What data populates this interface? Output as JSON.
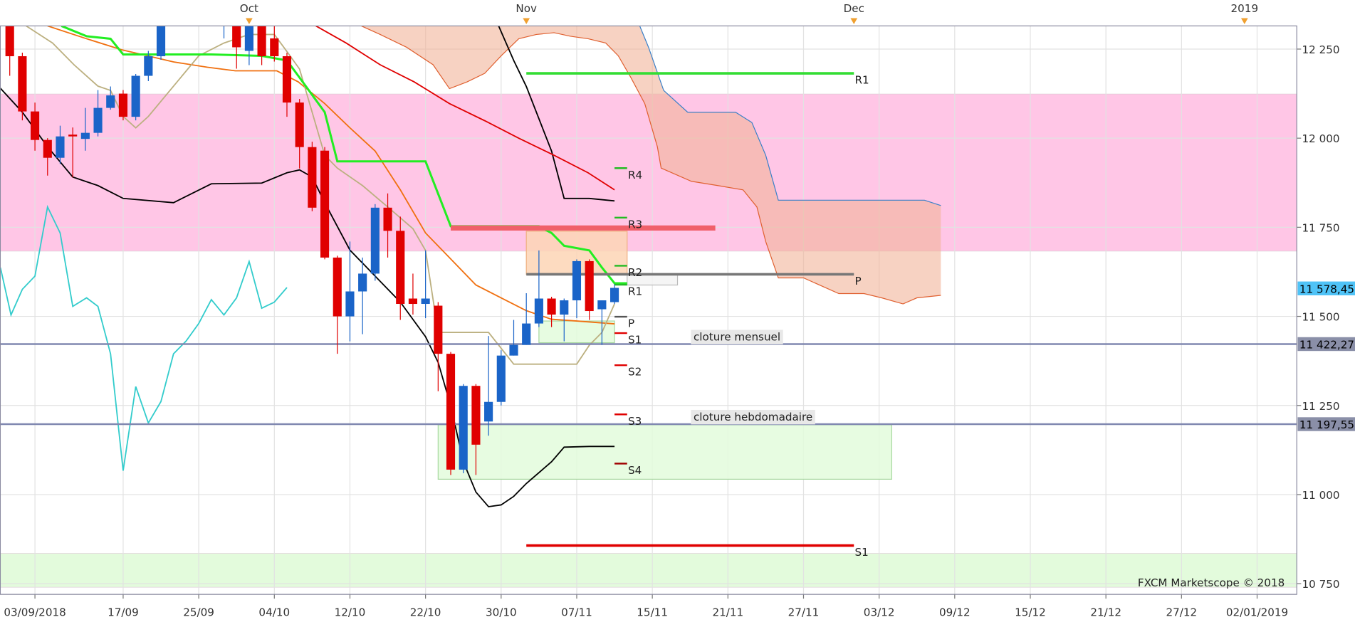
{
  "chart_data": {
    "type": "candlestick",
    "xlim": [
      -2.75,
      100.15
    ],
    "ylim": [
      10720,
      12315
    ],
    "grid": true,
    "xticks": [
      {
        "value": 0,
        "label": "03/09/2018"
      },
      {
        "value": 7,
        "label": "17/09"
      },
      {
        "value": 13,
        "label": "25/09"
      },
      {
        "value": 19,
        "label": "04/10"
      },
      {
        "value": 25,
        "label": "12/10"
      },
      {
        "value": 31,
        "label": "22/10"
      },
      {
        "value": 37,
        "label": "30/10"
      },
      {
        "value": 43,
        "label": "07/11"
      },
      {
        "value": 49,
        "label": "15/11"
      },
      {
        "value": 55,
        "label": "21/11"
      },
      {
        "value": 61,
        "label": "27/11"
      },
      {
        "value": 67,
        "label": "03/12"
      },
      {
        "value": 73,
        "label": "09/12"
      },
      {
        "value": 79,
        "label": "15/12"
      },
      {
        "value": 85,
        "label": "21/12"
      },
      {
        "value": 91,
        "label": "27/12"
      },
      {
        "value": 97,
        "label": "02/01/2019"
      }
    ],
    "top_ticks": [
      {
        "value": 17,
        "label": "Oct"
      },
      {
        "value": 39,
        "label": "Nov"
      },
      {
        "value": 65,
        "label": "Dec"
      },
      {
        "value": 96,
        "label": "2019"
      }
    ],
    "yticks": [
      {
        "value": 12250,
        "label": "12 250"
      },
      {
        "value": 12000,
        "label": "12 000"
      },
      {
        "value": 11750,
        "label": "11 750"
      },
      {
        "value": 11500,
        "label": "11 500"
      },
      {
        "value": 11250,
        "label": "11 250"
      },
      {
        "value": 11000,
        "label": "11 000"
      },
      {
        "value": 10750,
        "label": "10 750"
      }
    ],
    "candles": {
      "up_color": "#1a64c8",
      "down_color": "#e00000",
      "x": [
        -2,
        -1,
        0,
        1,
        2,
        3,
        4,
        5,
        6,
        7,
        8,
        9,
        10,
        15,
        16,
        17,
        18,
        19,
        20,
        21,
        22,
        23,
        24,
        25,
        26,
        27,
        28,
        29,
        30,
        31,
        32,
        33,
        34,
        35,
        36,
        37,
        38,
        39,
        40,
        41,
        42,
        43,
        44,
        45,
        46
      ],
      "open": [
        12330,
        12230,
        12075,
        11995,
        11945,
        12010,
        11998,
        12015,
        12085,
        12125,
        12060,
        12175,
        12230,
        12330,
        12330,
        12245,
        12330,
        12280,
        12230,
        12100,
        11975,
        11965,
        11665,
        11500,
        11570,
        11620,
        11805,
        11740,
        11550,
        11535,
        11530,
        11395,
        11070,
        11305,
        11205,
        11260,
        11390,
        11420,
        11480,
        11550,
        11505,
        11545,
        11655,
        11520,
        11540
      ],
      "high": [
        12340,
        12240,
        12100,
        12000,
        12035,
        12030,
        12085,
        12135,
        12145,
        12135,
        12180,
        12245,
        12330,
        12345,
        12340,
        12340,
        12340,
        12320,
        12240,
        12110,
        11990,
        11975,
        11670,
        11710,
        11665,
        11815,
        11845,
        11780,
        11620,
        11685,
        11540,
        11400,
        11310,
        11310,
        11445,
        11405,
        11490,
        11565,
        11685,
        11555,
        11550,
        11660,
        11660,
        11545,
        11590
      ],
      "low": [
        12175,
        12050,
        11965,
        11895,
        11928,
        11890,
        11965,
        12005,
        12080,
        12050,
        12050,
        12160,
        12220,
        12280,
        12195,
        12205,
        12205,
        12215,
        12060,
        11915,
        11795,
        11660,
        11395,
        11430,
        11450,
        11600,
        11665,
        11490,
        11505,
        11495,
        11290,
        11055,
        11060,
        11055,
        11165,
        11250,
        11390,
        11420,
        11470,
        11470,
        11430,
        11495,
        11490,
        11420,
        11535
      ],
      "close": [
        12230,
        12075,
        11995,
        11945,
        12005,
        12005,
        12015,
        12085,
        12120,
        12060,
        12175,
        12230,
        12320,
        12340,
        12255,
        12330,
        12230,
        12230,
        12100,
        11975,
        11805,
        11665,
        11500,
        11570,
        11620,
        11805,
        11740,
        11535,
        11535,
        11550,
        11395,
        11070,
        11305,
        11140,
        11260,
        11390,
        11420,
        11480,
        11550,
        11505,
        11545,
        11655,
        11515,
        11545,
        11580
      ]
    },
    "lines": [
      {
        "color": "#000000",
        "x": [
          -2.74,
          -1,
          1,
          3,
          5,
          7,
          11,
          14,
          18,
          20,
          21,
          22,
          23,
          25,
          27,
          29,
          31,
          32,
          33,
          34,
          35,
          36,
          37,
          38,
          39,
          41,
          42,
          44,
          46
        ],
        "values": [
          12140,
          12073,
          11976,
          11891,
          11867,
          11831,
          11819,
          11872,
          11874,
          11903,
          11911,
          11891,
          11819,
          11686,
          11613,
          11540,
          11443,
          11371,
          11249,
          11092,
          11007,
          10966,
          10971,
          10995,
          11031,
          11092,
          11133,
          11135,
          11135
        ]
      },
      {
        "color": "#000000",
        "x": [
          36.8,
          38,
          39,
          41,
          42,
          44,
          46
        ],
        "values": [
          12315,
          12218,
          12145,
          11964,
          11831,
          11831,
          11824
        ]
      },
      {
        "color": "#e00000",
        "x": [
          22.3,
          24.7,
          27.4,
          30.1,
          32.9,
          35.7,
          38.4,
          41.2,
          43.9,
          46
        ],
        "values": [
          12315,
          12267,
          12206,
          12158,
          12097,
          12049,
          12000,
          11952,
          11903,
          11855
        ]
      },
      {
        "color": "#f07010",
        "x": [
          1,
          4.1,
          6.9,
          11,
          13.7,
          15.9,
          19.2,
          20.9,
          23,
          25,
          27,
          29,
          31,
          33,
          35,
          37,
          39,
          41,
          43,
          46
        ],
        "values": [
          12315,
          12279,
          12248,
          12214,
          12199,
          12189,
          12189,
          12158,
          12097,
          12029,
          11964,
          11855,
          11734,
          11661,
          11588,
          11552,
          11516,
          11492,
          11487,
          11479
        ]
      },
      {
        "color": "#bcb080",
        "x": [
          -0.7,
          1.4,
          3.1,
          5,
          6,
          7,
          8,
          9,
          11,
          13,
          15,
          17,
          19,
          20,
          21,
          23,
          24,
          26,
          28,
          30,
          31,
          32,
          36,
          38,
          43,
          44,
          45,
          46
        ],
        "values": [
          12315,
          12267,
          12206,
          12146,
          12134,
          12061,
          12029,
          12061,
          12146,
          12231,
          12267,
          12291,
          12291,
          12243,
          12194,
          11952,
          11916,
          11867,
          11807,
          11746,
          11685,
          11455,
          11455,
          11366,
          11366,
          11419,
          11455,
          11535
        ]
      },
      {
        "color": "#33cccc",
        "x": [
          -2.74,
          -1.9,
          -1,
          0,
          1,
          2,
          3,
          4.1,
          5,
          6,
          7,
          8,
          9,
          10,
          11,
          12,
          13,
          14,
          15,
          16,
          17,
          18,
          19,
          20
        ],
        "values": [
          11637,
          11504,
          11576,
          11613,
          11807,
          11734,
          11528,
          11552,
          11528,
          11395,
          11067,
          11303,
          11201,
          11261,
          11395,
          11431,
          11480,
          11547,
          11504,
          11552,
          11654,
          11523,
          11540,
          11581
        ]
      },
      {
        "color": "#22ee22",
        "x": [
          2.1,
          4.1,
          6,
          7,
          10,
          14,
          18,
          20,
          21,
          23,
          24,
          31,
          33,
          35,
          40,
          41,
          42,
          44,
          45,
          46,
          47
        ],
        "values": [
          12315,
          12286,
          12279,
          12235,
          12235,
          12235,
          12231,
          12218,
          12170,
          12073,
          11935,
          11935,
          11753,
          11753,
          11753,
          11734,
          11698,
          11685,
          11637,
          11593,
          11593
        ]
      }
    ],
    "cloud": {
      "color": "#f2b49a",
      "span_a": {
        "color": "#e06030",
        "x": [
          25.9,
          27.4,
          29.5,
          31.6,
          32.9,
          34.3,
          35.7,
          37,
          38.4,
          39.8,
          41.2,
          42.5,
          43.9,
          45.3,
          46.3,
          47.3,
          48.4,
          49.4,
          49.7,
          52.1,
          54.2,
          56.2,
          57.3,
          58,
          59,
          61,
          63.8,
          65.8,
          67.2,
          68.9,
          70,
          71.9
        ],
        "values": [
          12315,
          12291,
          12255,
          12206,
          12139,
          12158,
          12182,
          12231,
          12279,
          12291,
          12296,
          12286,
          12279,
          12267,
          12231,
          12170,
          12097,
          11976,
          11916,
          11879,
          11867,
          11855,
          11807,
          11710,
          11608,
          11608,
          11564,
          11564,
          11552,
          11535,
          11552,
          11559
        ]
      },
      "span_b": {
        "color": "#3a80c8",
        "x": [
          25.9,
          48,
          48.7,
          49.9,
          51.8,
          55.6,
          56.9,
          58,
          59,
          70.6,
          71.9
        ],
        "values": [
          12315,
          12315,
          12255,
          12134,
          12073,
          12073,
          12044,
          11952,
          11826,
          11826,
          11811
        ]
      }
    },
    "bands": [
      {
        "color": "#ffc6e6",
        "y": [
          11683,
          12124
        ]
      },
      {
        "color": "#e3fbdc",
        "y": [
          10740,
          10835
        ]
      }
    ],
    "boxes": [
      {
        "fill": "#e3fbdc",
        "stroke": "#a8d8a0",
        "x": [
          32,
          68
        ],
        "y": [
          11043,
          11196
        ]
      },
      {
        "fill": "#e3fbdc",
        "stroke": "#a8d8a0",
        "x": [
          40,
          46
        ],
        "y": [
          11426,
          11487
        ]
      },
      {
        "fill": "#fdd5b5",
        "stroke": "#f0b080",
        "x": [
          39,
          47
        ],
        "y": [
          11618,
          11739
        ]
      },
      {
        "fill": "#f3f3f3",
        "stroke": "#bbbbbb",
        "x": [
          47,
          51
        ],
        "y": [
          11588,
          11618
        ]
      }
    ],
    "levels": [
      {
        "label": "R1",
        "color": "#33dd33",
        "x": [
          39,
          65
        ],
        "value": 12182,
        "width": 3
      },
      {
        "label": "P",
        "color": "#777777",
        "x": [
          39,
          65
        ],
        "value": 11618,
        "width": 3
      },
      {
        "label": "S1",
        "color": "#e00000",
        "x": [
          39,
          65
        ],
        "value": 10857,
        "width": 3
      },
      {
        "color": "#f0606a",
        "x": [
          33,
          54
        ],
        "value": 11748,
        "width": 6
      },
      {
        "label": "R4",
        "color": "#22bb22",
        "x": [
          46,
          47
        ],
        "value": 11916,
        "width": 2
      },
      {
        "label": "R3",
        "color": "#22bb22",
        "x": [
          46,
          47
        ],
        "value": 11777,
        "width": 2
      },
      {
        "label": "R2",
        "color": "#22bb22",
        "x": [
          46,
          47
        ],
        "value": 11642,
        "width": 2
      },
      {
        "label": "R1",
        "color": "#22bb22",
        "x": [
          46,
          47
        ],
        "value": 11589,
        "width": 2
      },
      {
        "label": "P",
        "color": "#555555",
        "x": [
          46,
          47
        ],
        "value": 11499,
        "width": 2
      },
      {
        "label": "S1",
        "color": "#e00000",
        "x": [
          46,
          47
        ],
        "value": 11453,
        "width": 2
      },
      {
        "label": "S2",
        "color": "#e00000",
        "x": [
          46,
          47
        ],
        "value": 11363,
        "width": 2
      },
      {
        "label": "S3",
        "color": "#e00000",
        "x": [
          46,
          47
        ],
        "value": 11225,
        "width": 2
      },
      {
        "label": "S4",
        "color": "#a00000",
        "x": [
          46,
          47
        ],
        "value": 11087,
        "width": 2
      }
    ],
    "price_labels": [
      {
        "value": 11578.45,
        "label": "11 578,45",
        "background": "#4fc3f7"
      },
      {
        "value": 11422.27,
        "label": "11 422,27",
        "background": "#8a8fa8",
        "line_color": "#8088b0",
        "note": "cloture mensuel"
      },
      {
        "value": 11197.55,
        "label": "11 197,55",
        "background": "#8a8fa8",
        "line_color": "#8088b0",
        "note": "cloture hebdomadaire"
      }
    ],
    "watermark": "FXCM Marketscope © 2018"
  }
}
